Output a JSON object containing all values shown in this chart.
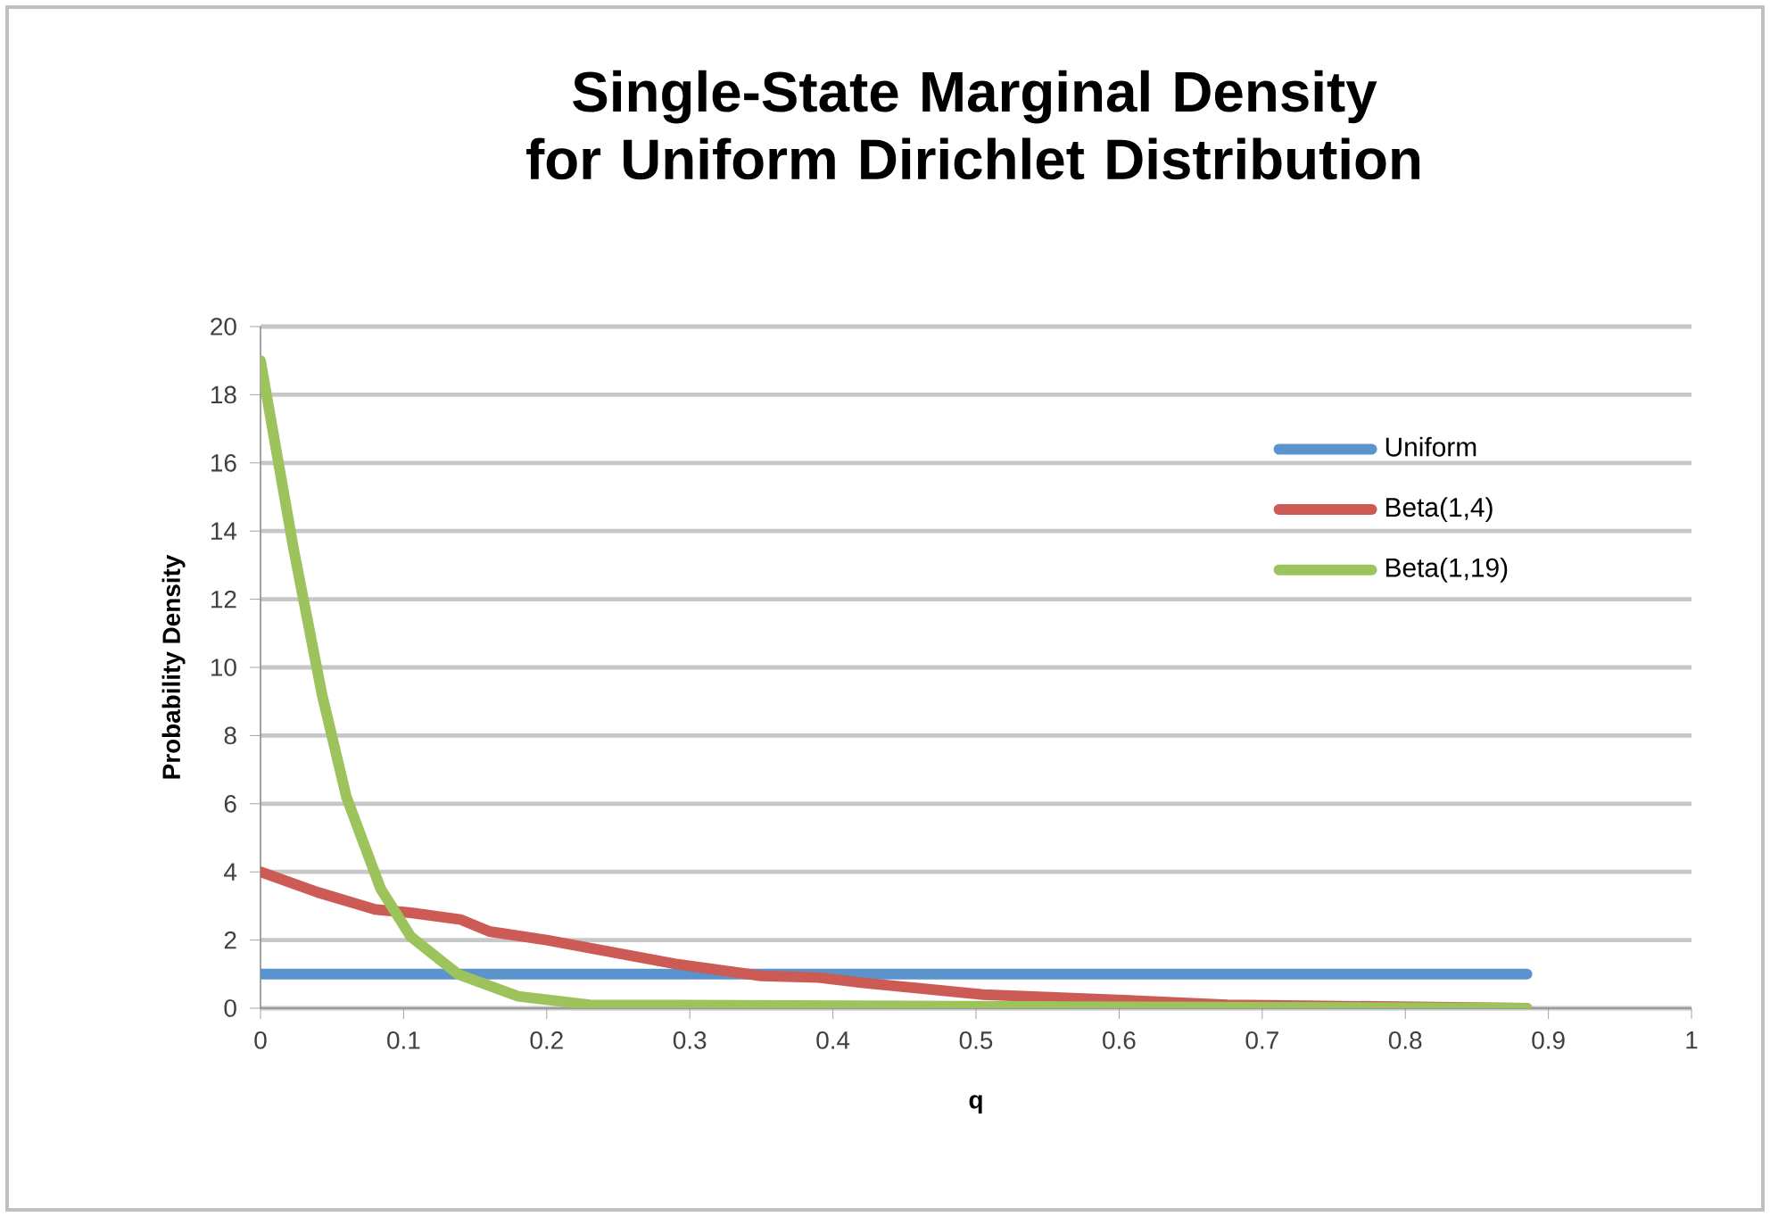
{
  "chart_data": {
    "type": "line",
    "title": "Single-State Marginal Density for Uniform Dirichlet Distribution",
    "xlabel": "q",
    "ylabel": "Probability Density",
    "xlim": [
      0,
      1
    ],
    "xticks": [
      0,
      0.1,
      0.2,
      0.3,
      0.4,
      0.5,
      0.6,
      0.7,
      0.8,
      0.9,
      1
    ],
    "ylim": [
      0,
      20
    ],
    "yticks": [
      0,
      2,
      4,
      6,
      8,
      10,
      12,
      14,
      16,
      18,
      20
    ],
    "grid": "y",
    "legend": "right",
    "marker": "none",
    "line_style": "solid",
    "series": [
      {
        "name": "Uniform",
        "color": "#5b93cc",
        "x": [
          0,
          0.885
        ],
        "values": [
          1,
          1
        ]
      },
      {
        "name": "Beta(1,4)",
        "color": "#cc5b55",
        "x": [
          0,
          0.04,
          0.08,
          0.105,
          0.14,
          0.16,
          0.2,
          0.245,
          0.29,
          0.35,
          0.39,
          0.42,
          0.505,
          0.595,
          0.676,
          0.885
        ],
        "values": [
          4,
          3.4,
          2.9,
          2.8,
          2.6,
          2.25,
          2,
          1.65,
          1.3,
          0.95,
          0.9,
          0.75,
          0.4,
          0.25,
          0.1,
          0
        ]
      },
      {
        "name": "Beta(1,19)",
        "color": "#9dc35c",
        "x": [
          0,
          0.023,
          0.043,
          0.06,
          0.084,
          0.105,
          0.138,
          0.18,
          0.23,
          0.885
        ],
        "values": [
          19,
          13.5,
          9.2,
          6.2,
          3.5,
          2.1,
          1,
          0.35,
          0.1,
          0
        ]
      }
    ]
  }
}
